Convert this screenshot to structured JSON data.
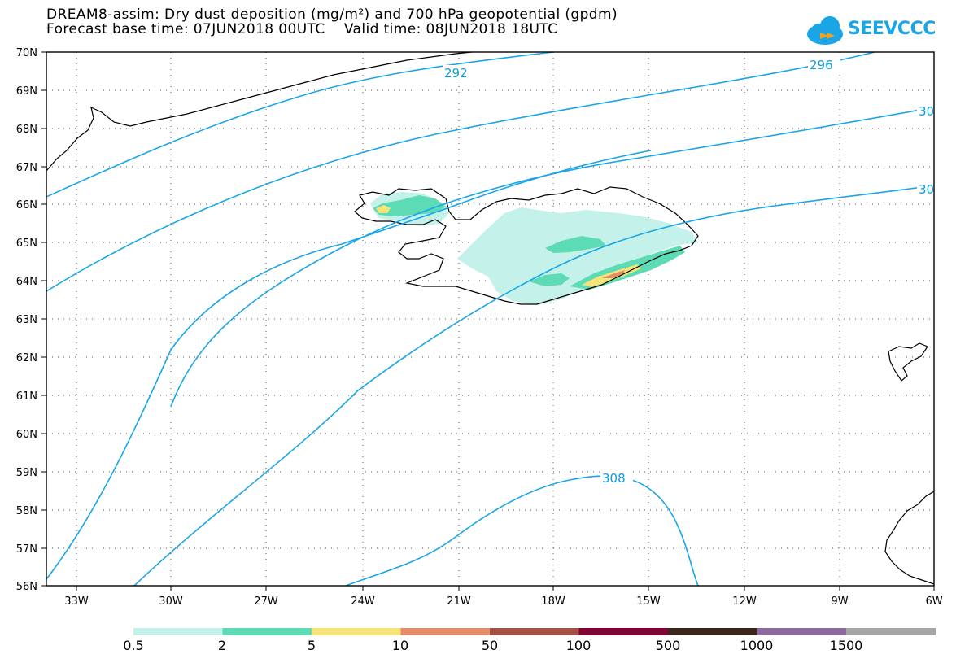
{
  "title": {
    "line1": "DREAM8-assim: Dry dust deposition (mg/m²) and 700 hPa geopotential (gpdm)",
    "line2": "Forecast base time: 07JUN2018 00UTC    Valid time: 08JUN2018 18UTC"
  },
  "logo": {
    "text": "SEEVCCC",
    "color": "#1aa6e6"
  },
  "axes": {
    "lat_labels": [
      "70N",
      "69N",
      "68N",
      "67N",
      "66N",
      "65N",
      "64N",
      "63N",
      "62N",
      "61N",
      "60N",
      "59N",
      "58N",
      "57N",
      "56N"
    ],
    "lon_labels": [
      "33W",
      "30W",
      "27W",
      "24W",
      "21W",
      "18W",
      "15W",
      "12W",
      "9W",
      "6W"
    ]
  },
  "contours": {
    "color": "#1aa6e6",
    "labels": [
      "292",
      "296",
      "30",
      "30",
      "308"
    ]
  },
  "colorbar": {
    "colors": [
      "#c4f1ea",
      "#5cdbb4",
      "#f5e477",
      "#e58c6a",
      "#a55046",
      "#820434",
      "#3a261b",
      "#8c6aa0",
      "#a6a6a6"
    ],
    "labels": [
      "0.5",
      "2",
      "5",
      "10",
      "50",
      "100",
      "500",
      "1000",
      "1500"
    ]
  }
}
